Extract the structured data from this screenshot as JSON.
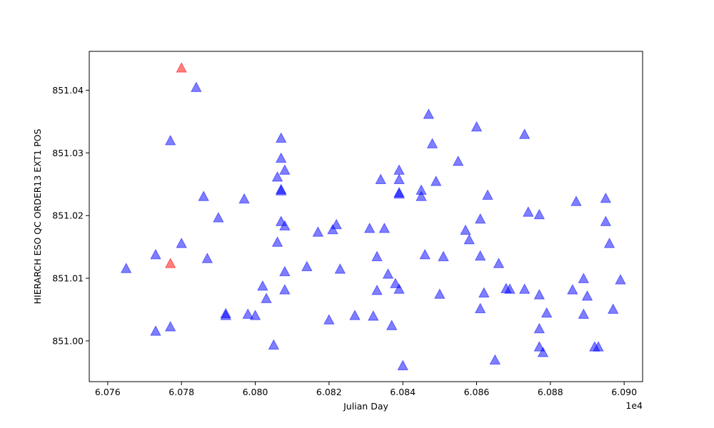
{
  "chart_data": {
    "type": "scatter",
    "xlabel": "Julian Day",
    "ylabel": "HIERARCH ESO QC ORDER13 EXT1 POS",
    "x_offset_label": "1e4",
    "xlim": [
      6.0755,
      6.0905
    ],
    "ylim": [
      850.9935,
      851.0462
    ],
    "x_ticks": [
      6.076,
      6.078,
      6.08,
      6.082,
      6.084,
      6.086,
      6.088,
      6.09
    ],
    "x_tick_labels": [
      "6.076",
      "6.078",
      "6.080",
      "6.082",
      "6.084",
      "6.086",
      "6.088",
      "6.090"
    ],
    "y_ticks": [
      851.0,
      851.01,
      851.02,
      851.03,
      851.04
    ],
    "y_tick_labels": [
      "851.00",
      "851.01",
      "851.02",
      "851.03",
      "851.04"
    ],
    "grid": false,
    "marker": "triangle-up",
    "colors": {
      "normal": "#0000ff",
      "outlier": "#ff0000"
    },
    "series": [
      {
        "color": "#0000ff",
        "points": [
          [
            6.0765,
            851.0115
          ],
          [
            6.0773,
            851.0015
          ],
          [
            6.0773,
            851.0137
          ],
          [
            6.0777,
            851.0022
          ],
          [
            6.0777,
            851.0319
          ],
          [
            6.078,
            851.0155
          ],
          [
            6.0784,
            851.0404
          ],
          [
            6.0786,
            851.023
          ],
          [
            6.0787,
            851.0131
          ],
          [
            6.079,
            851.0196
          ],
          [
            6.0792,
            851.0043
          ],
          [
            6.0792,
            851.004
          ],
          [
            6.0797,
            851.0226
          ],
          [
            6.0798,
            851.0042
          ],
          [
            6.08,
            851.004
          ],
          [
            6.0802,
            851.0087
          ],
          [
            6.0803,
            851.0067
          ],
          [
            6.0805,
            850.9993
          ],
          [
            6.0806,
            851.0157
          ],
          [
            6.0806,
            851.0261
          ],
          [
            6.0807,
            851.0241
          ],
          [
            6.0807,
            851.0239
          ],
          [
            6.0807,
            851.0291
          ],
          [
            6.0807,
            851.0323
          ],
          [
            6.0807,
            851.019
          ],
          [
            6.0808,
            851.0272
          ],
          [
            6.0808,
            851.0183
          ],
          [
            6.0808,
            851.011
          ],
          [
            6.0808,
            851.0081
          ],
          [
            6.0814,
            851.0118
          ],
          [
            6.0817,
            851.0173
          ],
          [
            6.082,
            851.0033
          ],
          [
            6.0821,
            851.0177
          ],
          [
            6.0822,
            851.0185
          ],
          [
            6.0823,
            851.0114
          ],
          [
            6.0827,
            851.004
          ],
          [
            6.0831,
            851.0179
          ],
          [
            6.0832,
            851.0039
          ],
          [
            6.0833,
            851.0134
          ],
          [
            6.0833,
            851.008
          ],
          [
            6.0834,
            851.0257
          ],
          [
            6.0835,
            851.0179
          ],
          [
            6.0836,
            851.0106
          ],
          [
            6.0837,
            851.0024
          ],
          [
            6.0838,
            851.0091
          ],
          [
            6.0839,
            851.0236
          ],
          [
            6.0839,
            851.0234
          ],
          [
            6.0839,
            851.0257
          ],
          [
            6.0839,
            851.0272
          ],
          [
            6.0839,
            851.0082
          ],
          [
            6.084,
            850.996
          ],
          [
            6.0845,
            851.023
          ],
          [
            6.0845,
            851.024
          ],
          [
            6.0846,
            851.0137
          ],
          [
            6.0847,
            851.0361
          ],
          [
            6.0848,
            851.0314
          ],
          [
            6.0849,
            851.0254
          ],
          [
            6.085,
            851.0074
          ],
          [
            6.0851,
            851.0134
          ],
          [
            6.0855,
            851.0286
          ],
          [
            6.0857,
            851.0176
          ],
          [
            6.0858,
            851.0161
          ],
          [
            6.086,
            851.0341
          ],
          [
            6.0861,
            851.0051
          ],
          [
            6.0861,
            851.0135
          ],
          [
            6.0861,
            851.0194
          ],
          [
            6.0862,
            851.0076
          ],
          [
            6.0863,
            851.0232
          ],
          [
            6.0865,
            850.9969
          ],
          [
            6.0866,
            851.0123
          ],
          [
            6.0868,
            851.0083
          ],
          [
            6.0869,
            851.0082
          ],
          [
            6.0873,
            851.0329
          ],
          [
            6.0873,
            851.0082
          ],
          [
            6.0874,
            851.0205
          ],
          [
            6.0877,
            851.0073
          ],
          [
            6.0877,
            851.0201
          ],
          [
            6.0877,
            851.0019
          ],
          [
            6.0877,
            850.999
          ],
          [
            6.0878,
            850.9981
          ],
          [
            6.0879,
            851.0044
          ],
          [
            6.0886,
            851.0081
          ],
          [
            6.0887,
            851.0222
          ],
          [
            6.0889,
            851.0099
          ],
          [
            6.0889,
            851.0042
          ],
          [
            6.089,
            851.0071
          ],
          [
            6.0892,
            850.999
          ],
          [
            6.0893,
            850.999
          ],
          [
            6.0895,
            851.0227
          ],
          [
            6.0895,
            851.019
          ],
          [
            6.0896,
            851.0155
          ],
          [
            6.0897,
            851.005
          ],
          [
            6.0899,
            851.0097
          ]
        ]
      },
      {
        "color": "#ff0000",
        "points": [
          [
            6.0777,
            851.0123
          ],
          [
            6.078,
            851.0435
          ]
        ]
      }
    ]
  }
}
